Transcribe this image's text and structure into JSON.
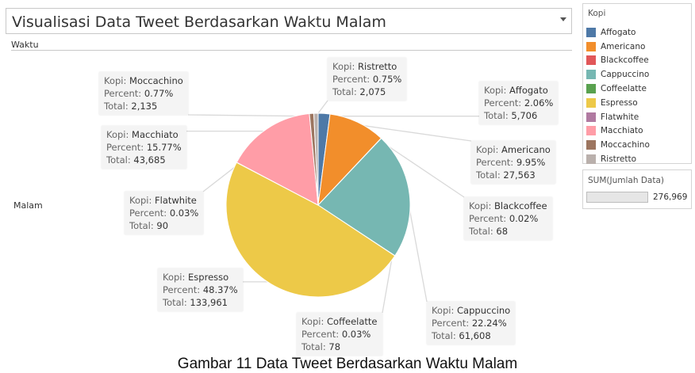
{
  "title": "Visualisasi Data Tweet Berdasarkan Waktu Malam",
  "column_header": "Waktu",
  "row_label": "Malam",
  "legend": {
    "title": "Kopi",
    "items": [
      {
        "label": "Affogato",
        "color": "#4e79a7"
      },
      {
        "label": "Americano",
        "color": "#f28e2b"
      },
      {
        "label": "Blackcoffee",
        "color": "#e15759"
      },
      {
        "label": "Cappuccino",
        "color": "#76b7b2"
      },
      {
        "label": "Coffeelatte",
        "color": "#59a14f"
      },
      {
        "label": "Espresso",
        "color": "#edc948"
      },
      {
        "label": "Flatwhite",
        "color": "#b07aa1"
      },
      {
        "label": "Macchiato",
        "color": "#ff9da7"
      },
      {
        "label": "Moccachino",
        "color": "#9c755f"
      },
      {
        "label": "Ristretto",
        "color": "#bab0ac"
      }
    ]
  },
  "size_legend": {
    "title": "SUM(Jumlah Data)",
    "value": "276,969"
  },
  "caption": "Gambar 11 Data Tweet Berdasarkan Waktu Malam",
  "tooltip_labels": {
    "kopi": "Kopi:",
    "percent": "Percent:",
    "total": "Total:"
  },
  "chart_data": {
    "type": "pie",
    "title": "Visualisasi Data Tweet Berdasarkan Waktu Malam",
    "slices": [
      {
        "label": "Affogato",
        "percent": "2.06%",
        "total": "5,706",
        "value": 5706,
        "color": "#4e79a7"
      },
      {
        "label": "Americano",
        "percent": "9.95%",
        "total": "27,563",
        "value": 27563,
        "color": "#f28e2b"
      },
      {
        "label": "Blackcoffee",
        "percent": "0.02%",
        "total": "68",
        "value": 68,
        "color": "#e15759"
      },
      {
        "label": "Cappuccino",
        "percent": "22.24%",
        "total": "61,608",
        "value": 61608,
        "color": "#76b7b2"
      },
      {
        "label": "Coffeelatte",
        "percent": "0.03%",
        "total": "78",
        "value": 78,
        "color": "#59a14f"
      },
      {
        "label": "Espresso",
        "percent": "48.37%",
        "total": "133,961",
        "value": 133961,
        "color": "#edc948"
      },
      {
        "label": "Flatwhite",
        "percent": "0.03%",
        "total": "90",
        "value": 90,
        "color": "#b07aa1"
      },
      {
        "label": "Macchiato",
        "percent": "15.77%",
        "total": "43,685",
        "value": 43685,
        "color": "#ff9da7"
      },
      {
        "label": "Moccachino",
        "percent": "0.77%",
        "total": "2,135",
        "value": 2135,
        "color": "#9c755f"
      },
      {
        "label": "Ristretto",
        "percent": "0.75%",
        "total": "2,075",
        "value": 2075,
        "color": "#bab0ac"
      }
    ]
  }
}
